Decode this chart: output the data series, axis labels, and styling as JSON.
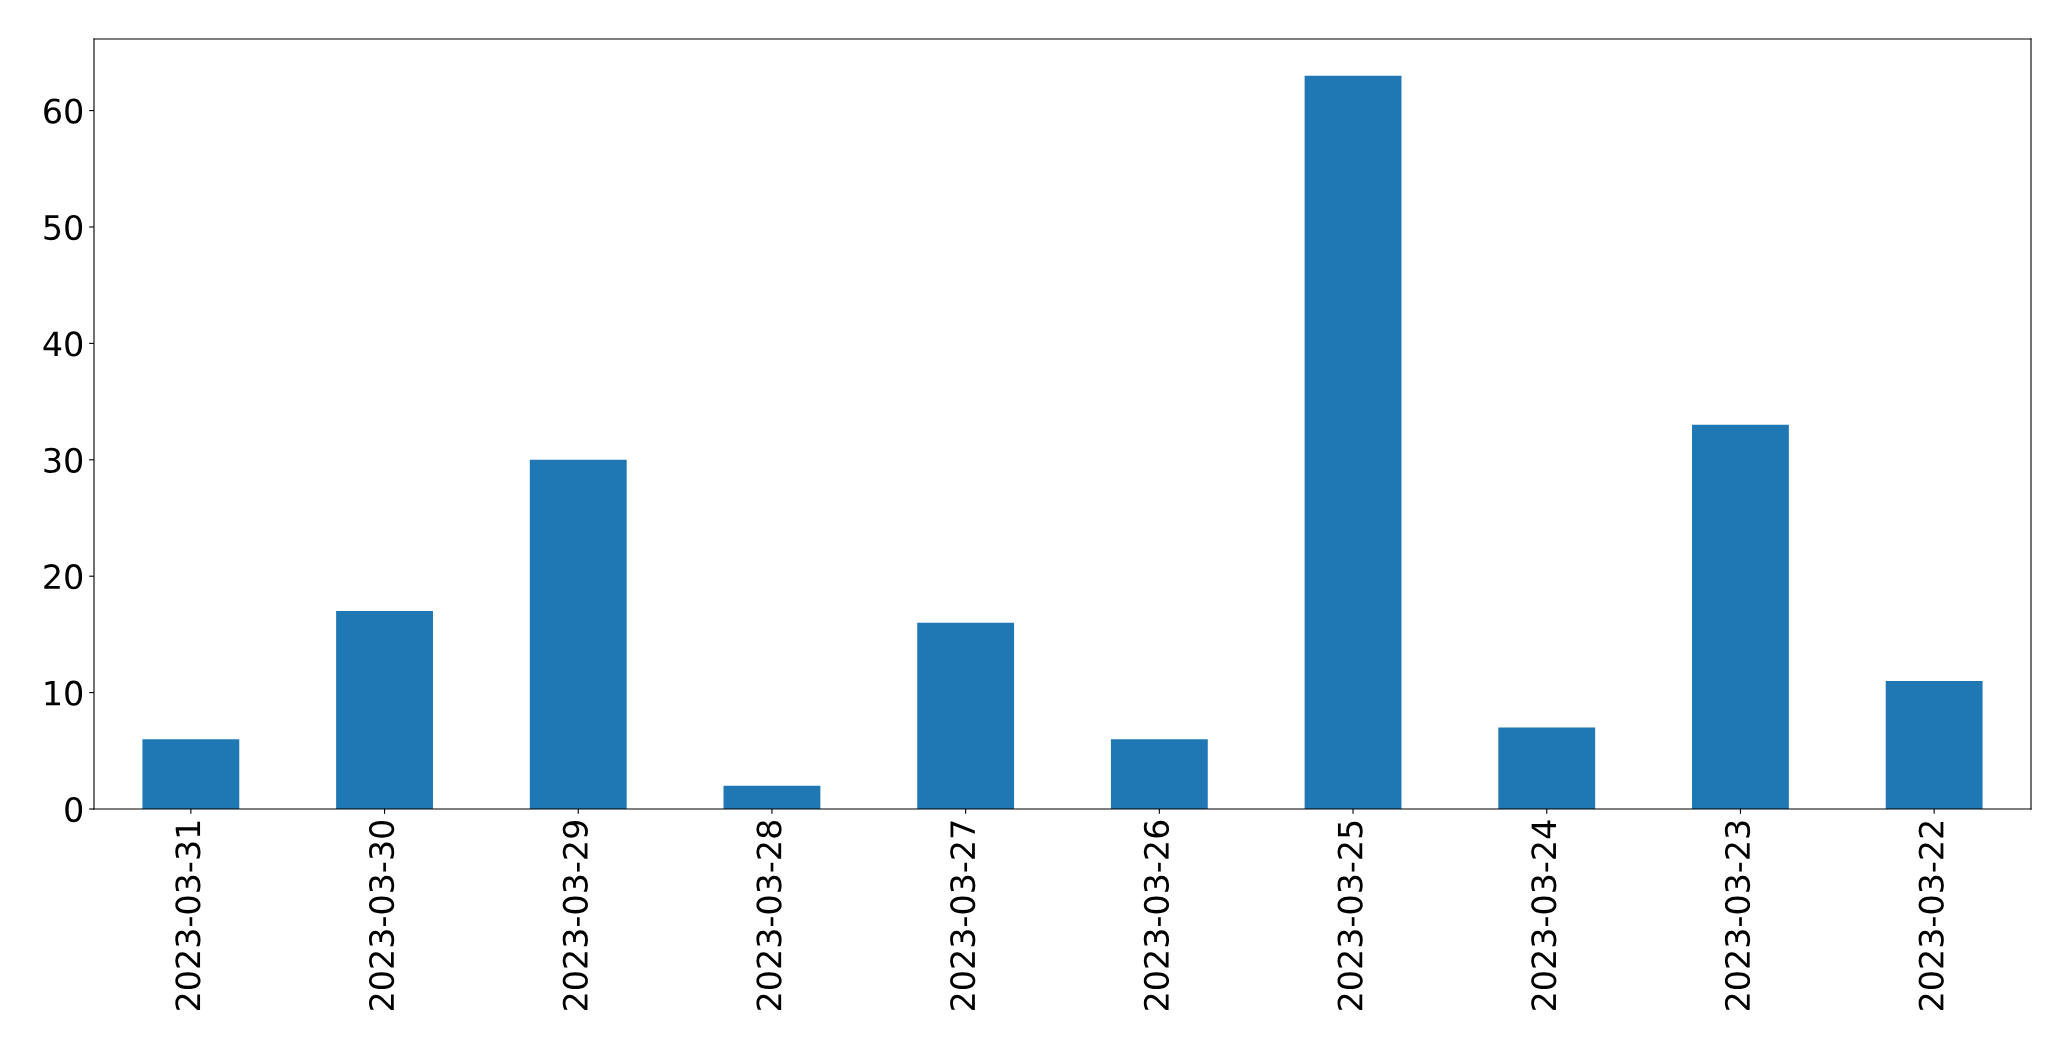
{
  "chart_data": {
    "type": "bar",
    "categories": [
      "2023-03-31",
      "2023-03-30",
      "2023-03-29",
      "2023-03-28",
      "2023-03-27",
      "2023-03-26",
      "2023-03-25",
      "2023-03-24",
      "2023-03-23",
      "2023-03-22"
    ],
    "values": [
      6,
      17,
      30,
      2,
      16,
      6,
      63,
      7,
      33,
      11
    ],
    "color": "#1f77b4",
    "ylim": [
      0,
      66.15
    ],
    "yticks": [
      0,
      10,
      20,
      30,
      40,
      50,
      60
    ],
    "grid": false,
    "legend": false
  }
}
